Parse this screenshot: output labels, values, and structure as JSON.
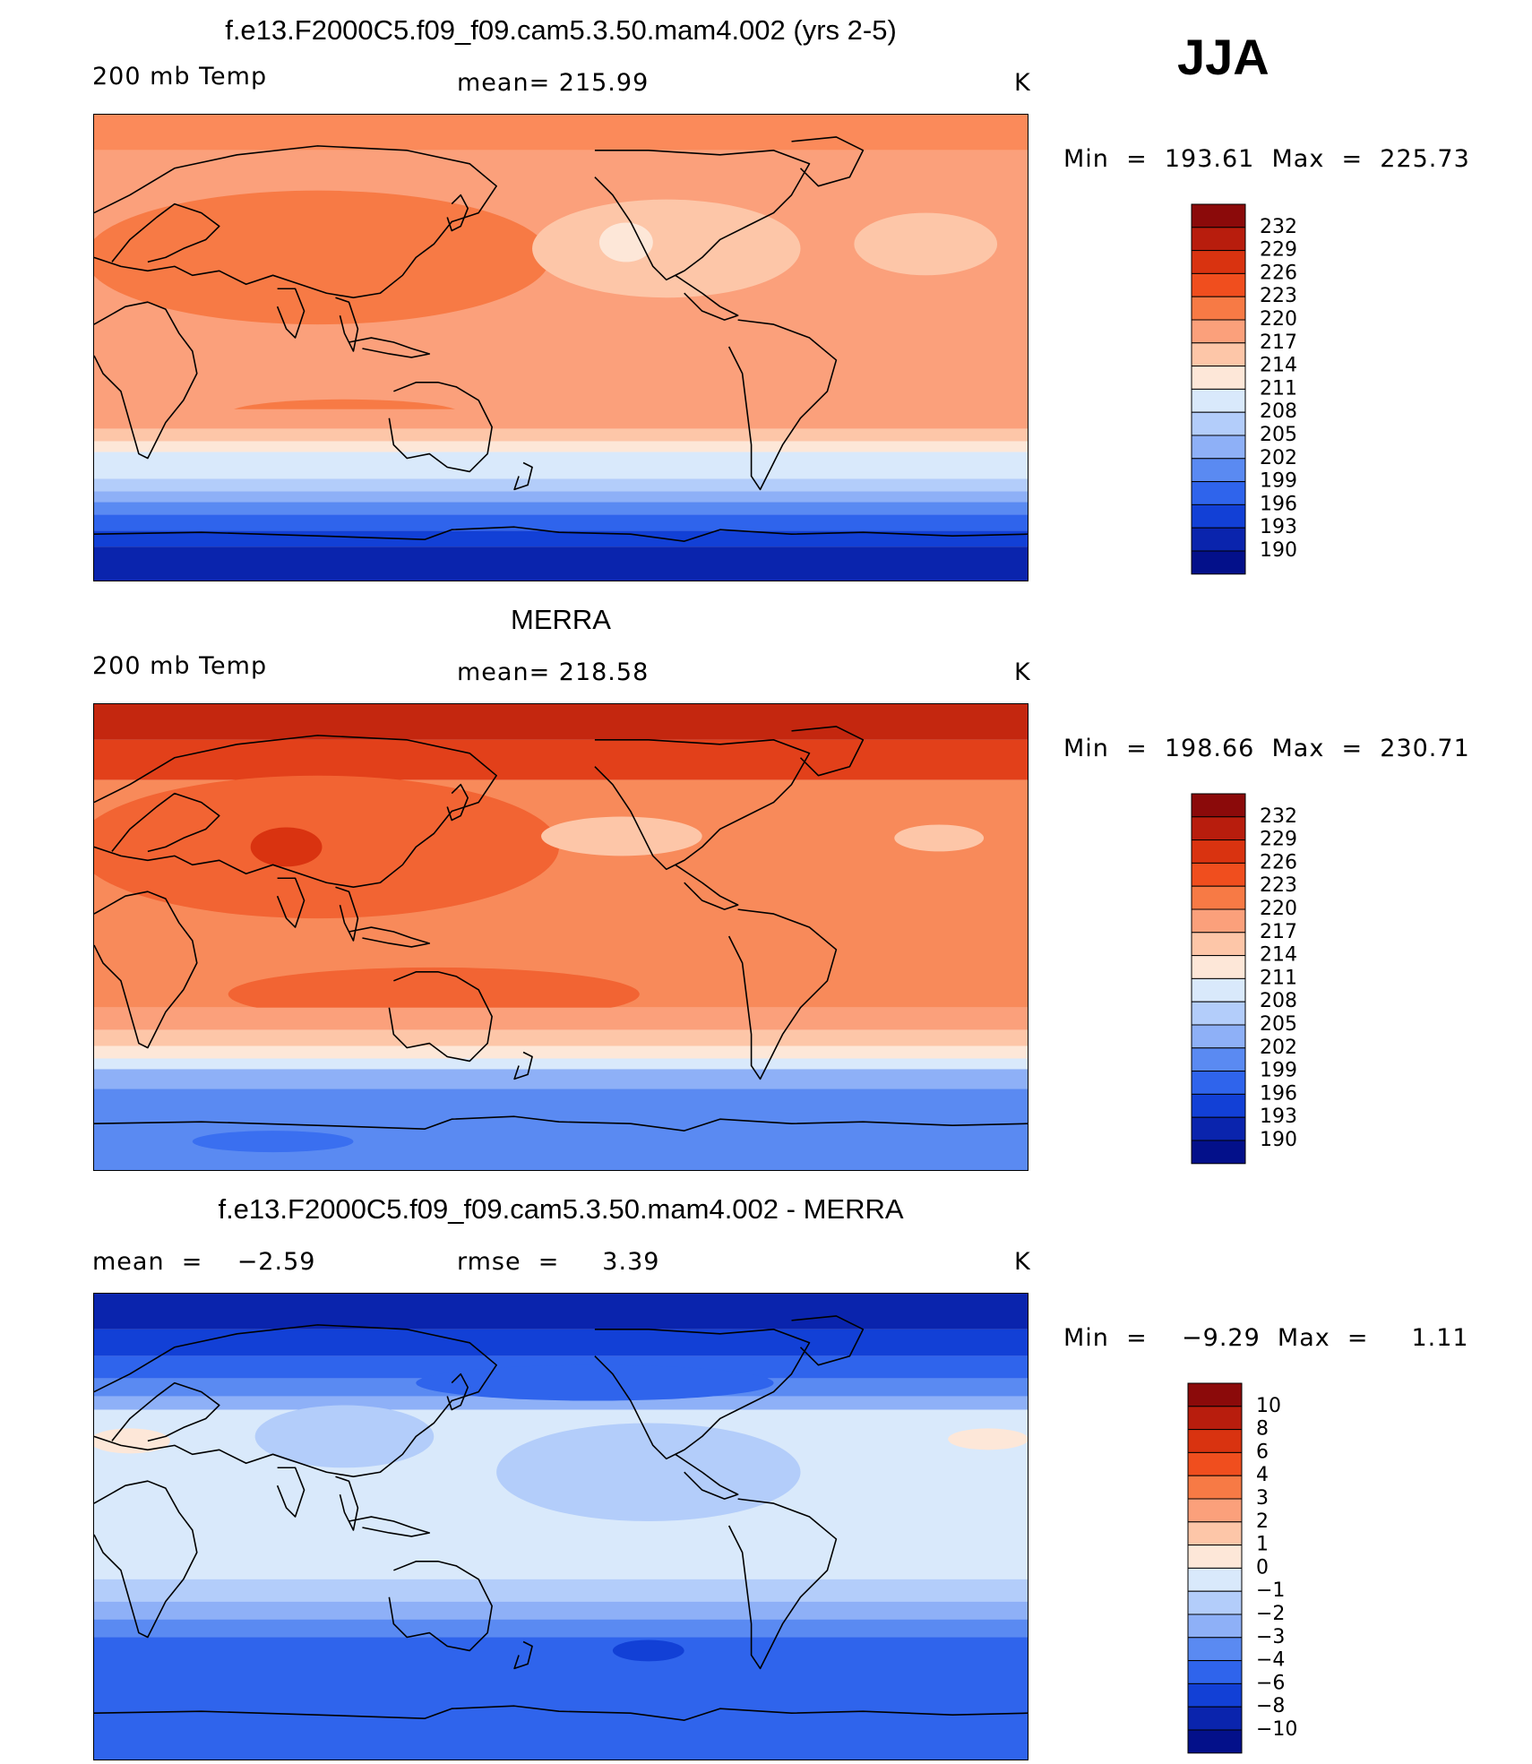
{
  "season": "JJA",
  "panels": [
    {
      "title": "f.e13.F2000C5.f09_f09.cam5.3.50.mam4.002 (yrs 2-5)",
      "left_label": "200 mb Temp",
      "center_label": "mean= 215.99",
      "units": "K",
      "minmax": "Min  =  193.61  Max  =  225.73",
      "colorbar": {
        "levels": [
          "232",
          "229",
          "226",
          "223",
          "220",
          "217",
          "214",
          "211",
          "208",
          "205",
          "202",
          "199",
          "196",
          "193",
          "190"
        ],
        "colors": [
          "#8b0a0a",
          "#b81d0d",
          "#d93310",
          "#f04e1e",
          "#f77a45",
          "#fba07b",
          "#fdc6a8",
          "#fde7d8",
          "#d9e9fb",
          "#b3cdfa",
          "#8eb0f7",
          "#5a8af2",
          "#2f64ec",
          "#1240d6",
          "#0a24ad",
          "#03108a"
        ]
      },
      "chart_data": {
        "type": "heatmap",
        "variable": "200 mb Temp",
        "units": "K",
        "mean": 215.99,
        "min": 193.61,
        "max": 225.73,
        "projection": "cylindrical equidistant, centered near 180",
        "zonal_profile": {
          "lat": [
            90,
            60,
            30,
            0,
            -30,
            -45,
            -60,
            -75,
            -90
          ],
          "value": [
            221,
            219,
            219,
            218,
            219,
            211,
            202,
            196,
            194
          ]
        }
      }
    },
    {
      "title": "MERRA",
      "left_label": "200 mb Temp",
      "center_label": "mean= 218.58",
      "units": "K",
      "minmax": "Min  =  198.66  Max  =  230.71",
      "colorbar": {
        "levels": [
          "232",
          "229",
          "226",
          "223",
          "220",
          "217",
          "214",
          "211",
          "208",
          "205",
          "202",
          "199",
          "196",
          "193",
          "190"
        ],
        "colors": [
          "#8b0a0a",
          "#b81d0d",
          "#d93310",
          "#f04e1e",
          "#f77a45",
          "#fba07b",
          "#fdc6a8",
          "#fde7d8",
          "#d9e9fb",
          "#b3cdfa",
          "#8eb0f7",
          "#5a8af2",
          "#2f64ec",
          "#1240d6",
          "#0a24ad",
          "#03108a"
        ]
      },
      "chart_data": {
        "type": "heatmap",
        "variable": "200 mb Temp",
        "units": "K",
        "mean": 218.58,
        "min": 198.66,
        "max": 230.71,
        "projection": "cylindrical equidistant, centered near 180",
        "zonal_profile": {
          "lat": [
            90,
            60,
            30,
            0,
            -30,
            -45,
            -60,
            -75,
            -90
          ],
          "value": [
            229,
            225,
            222,
            219,
            221,
            215,
            208,
            202,
            200
          ]
        }
      }
    },
    {
      "title": "f.e13.F2000C5.f09_f09.cam5.3.50.mam4.002 - MERRA",
      "left_label": "mean  =    −2.59",
      "center_label": "rmse  =     3.39",
      "units": "K",
      "minmax": "Min  =    −9.29  Max  =     1.11",
      "colorbar": {
        "levels": [
          "10",
          "8",
          "6",
          "4",
          "3",
          "2",
          "1",
          "0",
          "−1",
          "−2",
          "−3",
          "−4",
          "−6",
          "−8",
          "−10"
        ],
        "colors": [
          "#8b0a0a",
          "#b81d0d",
          "#d93310",
          "#f04e1e",
          "#f77a45",
          "#fba07b",
          "#fdc6a8",
          "#fde7d8",
          "#d9e9fb",
          "#b3cdfa",
          "#8eb0f7",
          "#5a8af2",
          "#2f64ec",
          "#1240d6",
          "#0a24ad",
          "#03108a"
        ]
      },
      "chart_data": {
        "type": "heatmap",
        "variable": "difference",
        "units": "K",
        "mean": -2.59,
        "rmse": 3.39,
        "min": -9.29,
        "max": 1.11,
        "zonal_profile": {
          "lat": [
            90,
            60,
            30,
            0,
            -30,
            -45,
            -60,
            -75,
            -90
          ],
          "value": [
            -8,
            -5,
            -1.5,
            -1.5,
            -1.5,
            -3.5,
            -5,
            -5,
            -5
          ]
        }
      }
    }
  ],
  "map_colors": {
    "p1": [
      "#fb8a5a",
      "#fba07b",
      "#f77a45",
      "#fba07b",
      "#fdc6a8",
      "#fde7d8",
      "#d9e9fb",
      "#b3cdfa",
      "#8eb0f7",
      "#5a8af2",
      "#2f64ec",
      "#1240d6",
      "#0a24ad",
      "#f04e1e",
      "#fdc6a8"
    ],
    "p2": [
      "#c4270f",
      "#e2401a",
      "#f26433",
      "#f88a5a",
      "#f88a5a",
      "#fba07b",
      "#fdc6a8",
      "#fde7d8",
      "#d9e9fb",
      "#8eb0f7",
      "#5a8af2",
      "#3a6ff0",
      "#d93310",
      "#fdc6a8",
      "#f26433"
    ],
    "p3": [
      "#0a24ad",
      "#1240d6",
      "#2f64ec",
      "#5a8af2",
      "#8eb0f7",
      "#b3cdfa",
      "#d9e9fb",
      "#fde7d8",
      "#1240d6"
    ]
  }
}
